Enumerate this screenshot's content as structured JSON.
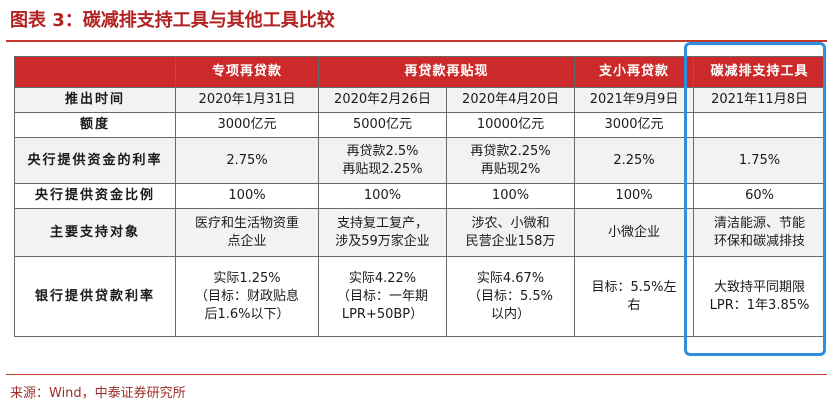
{
  "title": "图表 3：碳减排支持工具与其他工具比较",
  "source": "来源：Wind，中泰证券研究所",
  "header": {
    "corner": "",
    "col1": "专项再贷款",
    "col2": "再贷款再贴现",
    "col3": "支小再贷款",
    "col4": "碳减排支持工具"
  },
  "rows": {
    "launch": {
      "label": "推出时间",
      "c1": "2020年1月31日",
      "c2a": "2020年2月26日",
      "c2b": "2020年4月20日",
      "c3": "2021年9月9日",
      "c4": "2021年11月8日"
    },
    "quota": {
      "label": "额度",
      "c1": "3000亿元",
      "c2a": "5000亿元",
      "c2b": "10000亿元",
      "c3": "3000亿元",
      "c4": ""
    },
    "rate": {
      "label": "央行提供资金的利率",
      "c1": "2.75%",
      "c2a_1": "再贷款2.5%",
      "c2a_2": "再贴现2.25%",
      "c2b_1": "再贷款2.25%",
      "c2b_2": "再贴现2%",
      "c3": "2.25%",
      "c4": "1.75%"
    },
    "ratio": {
      "label": "央行提供资金比例",
      "c1": "100%",
      "c2a": "100%",
      "c2b": "100%",
      "c3": "100%",
      "c4": "60%"
    },
    "target": {
      "label": "主要支持对象",
      "c1_1": "医疗和生活物资重",
      "c1_2": "点企业",
      "c2a_1": "支持复工复产，",
      "c2a_2": "涉及59万家企业",
      "c2b_1": "涉农、小微和",
      "c2b_2": "民营企业158万",
      "c3": "小微企业",
      "c4_1": "清洁能源、节能",
      "c4_2": "环保和碳减排技"
    },
    "bank_rate": {
      "label": "银行提供贷款利率",
      "c1_1": "实际1.25%",
      "c1_2": "（目标：财政贴息",
      "c1_3": "后1.6%以下）",
      "c2a_1": "实际4.22%",
      "c2a_2": "（目标：一年期",
      "c2a_3": "LPR+50BP）",
      "c2b_1": "实际4.67%",
      "c2b_2": "（目标：5.5%",
      "c2b_3": "以内）",
      "c3_1": "目标：5.5%左",
      "c3_2": "右",
      "c4_1": "大致持平同期限",
      "c4_2": "LPR：1年3.85%"
    }
  },
  "colors": {
    "header_bg": "#cc2a2a",
    "title": "#b22222",
    "highlight_border": "#2f8ee0",
    "alt_row": "#f2f2f2"
  }
}
